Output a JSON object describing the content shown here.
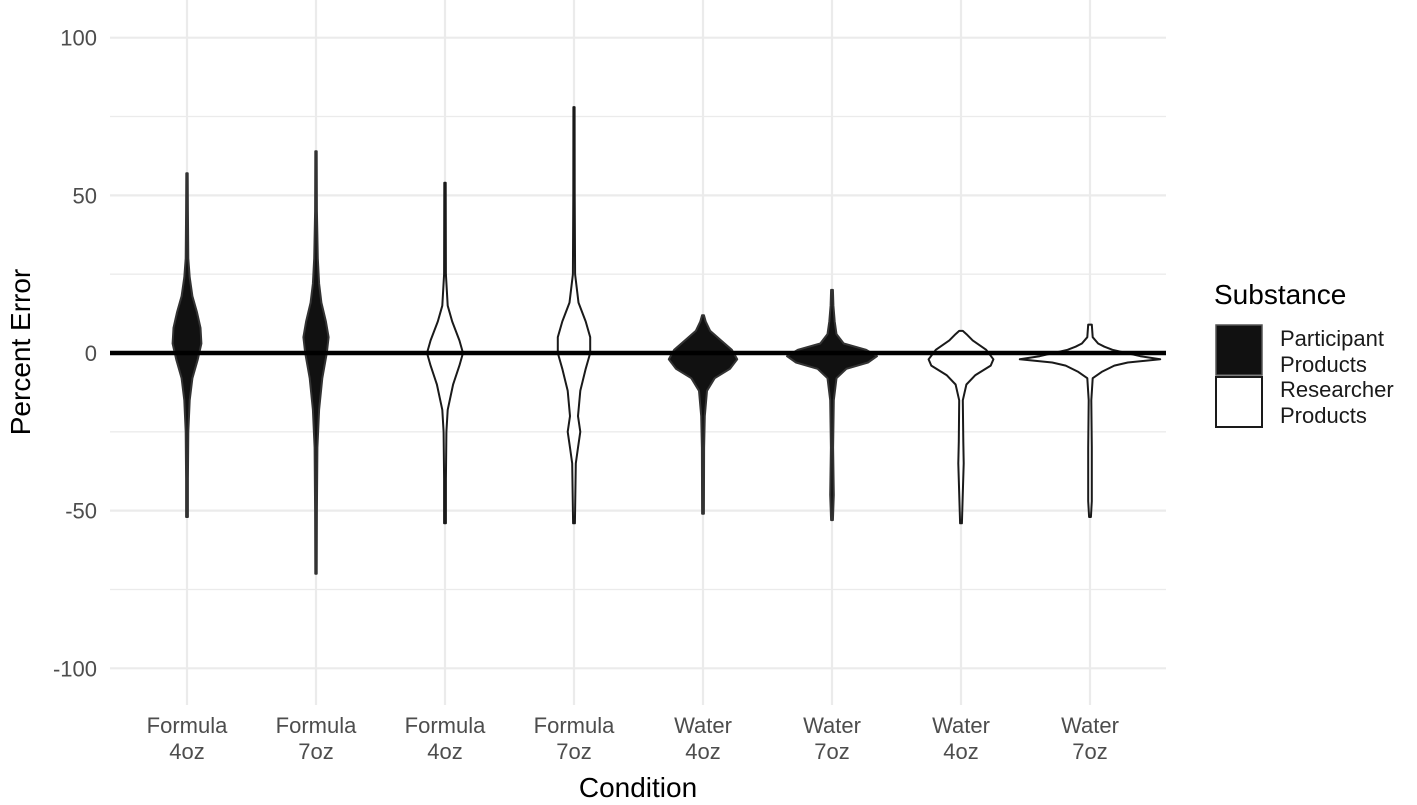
{
  "chart_data": {
    "type": "violin",
    "xlabel": "Condition",
    "ylabel": "Percent Error",
    "ylim": [
      -110,
      110
    ],
    "yticks": [
      "100",
      "50",
      "0",
      "-50",
      "-100"
    ],
    "ytick_values": [
      100,
      50,
      0,
      -50,
      -100
    ],
    "grid": true,
    "reference_line": 0,
    "legend": {
      "title": "Substance",
      "placement": "right",
      "entries": [
        {
          "line1": "Participant",
          "line2": "Products",
          "fill": "#111111"
        },
        {
          "line1": "Researcher",
          "line2": "Products",
          "fill": "#ffffff"
        }
      ]
    },
    "categories": [
      {
        "line1": "Formula",
        "line2": "4oz",
        "group": "participant",
        "min": -52,
        "max": 57,
        "median": 5,
        "profile": [
          [
            -52,
            0.1
          ],
          [
            -40,
            0.1
          ],
          [
            -25,
            0.15
          ],
          [
            -15,
            0.3
          ],
          [
            -8,
            0.6
          ],
          [
            -2,
            1.2
          ],
          [
            3,
            1.6
          ],
          [
            8,
            1.5
          ],
          [
            13,
            1.1
          ],
          [
            18,
            0.6
          ],
          [
            24,
            0.3
          ],
          [
            30,
            0.15
          ],
          [
            45,
            0.1
          ],
          [
            57,
            0.08
          ]
        ]
      },
      {
        "line1": "Formula",
        "line2": "7oz",
        "group": "participant",
        "min": -70,
        "max": 64,
        "median": 4,
        "profile": [
          [
            -70,
            0.08
          ],
          [
            -50,
            0.1
          ],
          [
            -30,
            0.15
          ],
          [
            -18,
            0.35
          ],
          [
            -8,
            0.7
          ],
          [
            0,
            1.2
          ],
          [
            5,
            1.4
          ],
          [
            10,
            1.1
          ],
          [
            16,
            0.6
          ],
          [
            22,
            0.35
          ],
          [
            30,
            0.2
          ],
          [
            45,
            0.1
          ],
          [
            64,
            0.08
          ]
        ]
      },
      {
        "line1": "Formula",
        "line2": "4oz",
        "group": "researcher",
        "min": -54,
        "max": 54,
        "median": 0,
        "profile": [
          [
            -54,
            0.1
          ],
          [
            -40,
            0.1
          ],
          [
            -25,
            0.15
          ],
          [
            -18,
            0.3
          ],
          [
            -10,
            0.9
          ],
          [
            -4,
            1.6
          ],
          [
            0,
            2.0
          ],
          [
            4,
            1.6
          ],
          [
            10,
            0.8
          ],
          [
            15,
            0.3
          ],
          [
            25,
            0.1
          ],
          [
            54,
            0.08
          ]
        ]
      },
      {
        "line1": "Formula",
        "line2": "7oz",
        "group": "researcher",
        "min": -54,
        "max": 78,
        "median": 0,
        "profile": [
          [
            -54,
            0.1
          ],
          [
            -35,
            0.2
          ],
          [
            -30,
            0.45
          ],
          [
            -25,
            0.7
          ],
          [
            -20,
            0.45
          ],
          [
            -12,
            0.7
          ],
          [
            -5,
            1.3
          ],
          [
            0,
            1.8
          ],
          [
            5,
            1.8
          ],
          [
            10,
            1.3
          ],
          [
            16,
            0.5
          ],
          [
            25,
            0.12
          ],
          [
            50,
            0.08
          ],
          [
            78,
            0.07
          ]
        ]
      },
      {
        "line1": "Water",
        "line2": "4oz",
        "group": "participant",
        "min": -51,
        "max": 12,
        "median": -2,
        "profile": [
          [
            -51,
            0.1
          ],
          [
            -30,
            0.12
          ],
          [
            -20,
            0.2
          ],
          [
            -12,
            0.45
          ],
          [
            -8,
            1.3
          ],
          [
            -5,
            3.0
          ],
          [
            -2,
            3.8
          ],
          [
            1,
            3.2
          ],
          [
            4,
            2.0
          ],
          [
            7,
            0.8
          ],
          [
            10,
            0.3
          ],
          [
            12,
            0.1
          ]
        ]
      },
      {
        "line1": "Water",
        "line2": "7oz",
        "group": "participant",
        "min": -53,
        "max": 20,
        "median": -1,
        "profile": [
          [
            -53,
            0.1
          ],
          [
            -45,
            0.2
          ],
          [
            -30,
            0.12
          ],
          [
            -15,
            0.2
          ],
          [
            -8,
            0.5
          ],
          [
            -5,
            1.6
          ],
          [
            -3,
            4.0
          ],
          [
            -1,
            5.0
          ],
          [
            1,
            3.8
          ],
          [
            3,
            1.3
          ],
          [
            6,
            0.5
          ],
          [
            10,
            0.3
          ],
          [
            15,
            0.15
          ],
          [
            20,
            0.1
          ]
        ]
      },
      {
        "line1": "Water",
        "line2": "4oz",
        "group": "researcher",
        "min": -54,
        "max": 7,
        "median": -2,
        "profile": [
          [
            -54,
            0.1
          ],
          [
            -35,
            0.3
          ],
          [
            -28,
            0.25
          ],
          [
            -15,
            0.2
          ],
          [
            -10,
            0.6
          ],
          [
            -7,
            1.6
          ],
          [
            -4,
            3.3
          ],
          [
            -2,
            3.6
          ],
          [
            1,
            2.8
          ],
          [
            4,
            1.3
          ],
          [
            6,
            0.6
          ],
          [
            7,
            0.2
          ]
        ]
      },
      {
        "line1": "Water",
        "line2": "7oz",
        "group": "researcher",
        "min": -52,
        "max": 9,
        "median": -2,
        "profile": [
          [
            -52,
            0.1
          ],
          [
            -47,
            0.2
          ],
          [
            -30,
            0.2
          ],
          [
            -15,
            0.15
          ],
          [
            -8,
            0.3
          ],
          [
            -6,
            1.3
          ],
          [
            -4,
            2.7
          ],
          [
            -3,
            4.2
          ],
          [
            -2,
            7.8
          ],
          [
            -1,
            5.6
          ],
          [
            1,
            2.5
          ],
          [
            2,
            1.6
          ],
          [
            3,
            0.9
          ],
          [
            5,
            0.3
          ],
          [
            9,
            0.2
          ]
        ]
      }
    ]
  }
}
